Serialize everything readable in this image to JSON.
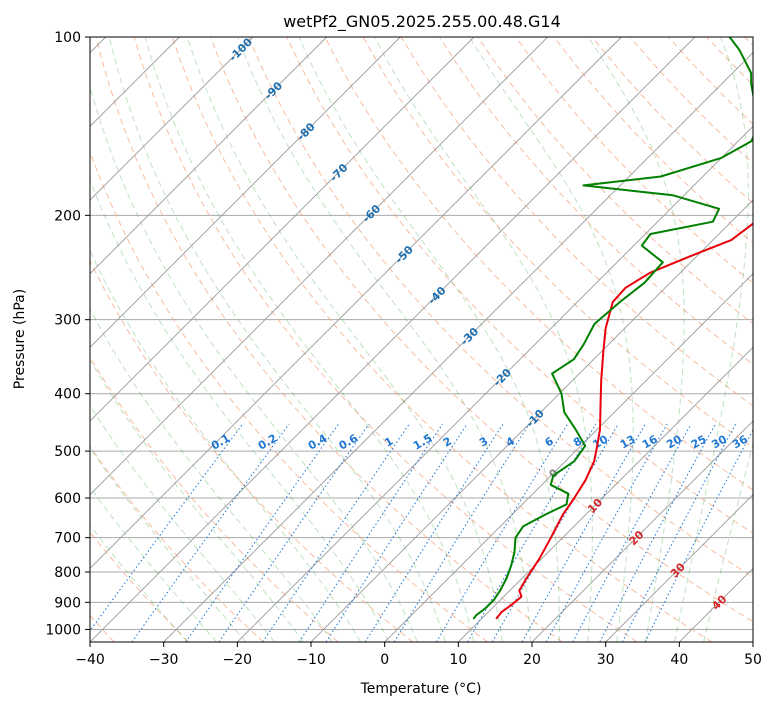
{
  "chart_data": {
    "type": "line",
    "subtype": "skew-t log-p diagram",
    "title": "wetPf2_GN05.2025.255.00.48.G14",
    "xlabel": "Temperature (°C)",
    "ylabel": "Pressure (hPa)",
    "xlim": [
      -40,
      50
    ],
    "ylim": [
      1050,
      100
    ],
    "x_ticks": [
      -40,
      -30,
      -20,
      -10,
      0,
      10,
      20,
      30,
      40,
      50
    ],
    "x_tick_labels": [
      "−40",
      "−30",
      "−20",
      "−10",
      "0",
      "10",
      "20",
      "30",
      "40",
      "50"
    ],
    "y_ticks": [
      1000,
      900,
      800,
      700,
      600,
      500,
      400,
      300,
      200,
      100
    ],
    "y_tick_labels": [
      "1000",
      "900",
      "800",
      "700",
      "600",
      "500",
      "400",
      "300",
      "200",
      "100"
    ],
    "grid": true,
    "colors": {
      "temperature": "#e8000b",
      "dewpoint": "#008000",
      "isotherm": "#999999",
      "isobar": "#aaaaaa",
      "dry_adiabat": "#f4a582",
      "moist_adiabat": "#2ca02c",
      "mixing_ratio": "#1f77d4",
      "isotherm_label_neg": "#1f6fb0",
      "isotherm_label_pos": "#d62728",
      "isotherm_label_zero": "#808080"
    },
    "series": [
      {
        "name": "Temperature",
        "points": [
          [
            960,
            12.0
          ],
          [
            935,
            11.8
          ],
          [
            905,
            12.2
          ],
          [
            880,
            12.4
          ],
          [
            860,
            11.3
          ],
          [
            820,
            10.6
          ],
          [
            760,
            9.7
          ],
          [
            700,
            8.4
          ],
          [
            640,
            6.9
          ],
          [
            600,
            6.2
          ],
          [
            560,
            5.3
          ],
          [
            520,
            3.9
          ],
          [
            500,
            2.8
          ],
          [
            460,
            0.4
          ],
          [
            420,
            -2.7
          ],
          [
            380,
            -6.1
          ],
          [
            340,
            -9.7
          ],
          [
            310,
            -12.6
          ],
          [
            280,
            -15.2
          ],
          [
            265,
            -15.4
          ],
          [
            250,
            -14.1
          ],
          [
            235,
            -11.0
          ],
          [
            220,
            -7.5
          ],
          [
            205,
            -6.7
          ],
          [
            195,
            -6.2
          ],
          [
            180,
            -4.4
          ],
          [
            165,
            -3.3
          ],
          [
            150,
            -3.0
          ],
          [
            135,
            -2.7
          ],
          [
            120,
            -3.4
          ],
          [
            110,
            -3.9
          ],
          [
            100,
            -4.6
          ]
        ]
      },
      {
        "name": "Dewpoint",
        "points": [
          [
            960,
            8.9
          ],
          [
            945,
            8.8
          ],
          [
            920,
            9.1
          ],
          [
            890,
            9.1
          ],
          [
            860,
            8.7
          ],
          [
            820,
            7.9
          ],
          [
            780,
            6.8
          ],
          [
            740,
            5.4
          ],
          [
            700,
            3.6
          ],
          [
            670,
            3.1
          ],
          [
            640,
            4.5
          ],
          [
            615,
            6.0
          ],
          [
            590,
            4.8
          ],
          [
            570,
            1.2
          ],
          [
            550,
            0.3
          ],
          [
            520,
            1.2
          ],
          [
            490,
            0.6
          ],
          [
            460,
            -2.9
          ],
          [
            430,
            -6.8
          ],
          [
            400,
            -9.7
          ],
          [
            370,
            -13.7
          ],
          [
            350,
            -12.7
          ],
          [
            330,
            -13.4
          ],
          [
            305,
            -14.7
          ],
          [
            280,
            -14.2
          ],
          [
            260,
            -13.5
          ],
          [
            240,
            -13.8
          ],
          [
            225,
            -18.9
          ],
          [
            215,
            -19.3
          ],
          [
            205,
            -12.5
          ],
          [
            195,
            -13.4
          ],
          [
            185,
            -21.5
          ],
          [
            178,
            -35.0
          ],
          [
            172,
            -25.7
          ],
          [
            160,
            -20.0
          ],
          [
            150,
            -18.2
          ],
          [
            140,
            -19.5
          ],
          [
            130,
            -22.7
          ],
          [
            120,
            -26.0
          ],
          [
            115,
            -27.5
          ],
          [
            105,
            -32.3
          ],
          [
            100,
            -35.3
          ]
        ]
      }
    ],
    "isotherm_labels": [
      {
        "t": -100,
        "label": "-100"
      },
      {
        "t": -90,
        "label": "-90"
      },
      {
        "t": -80,
        "label": "-80"
      },
      {
        "t": -70,
        "label": "-70"
      },
      {
        "t": -60,
        "label": "-60"
      },
      {
        "t": -50,
        "label": "-50"
      },
      {
        "t": -40,
        "label": "-40"
      },
      {
        "t": -30,
        "label": "-30"
      },
      {
        "t": -20,
        "label": "-20"
      },
      {
        "t": -10,
        "label": "-10"
      },
      {
        "t": 0,
        "label": "0"
      },
      {
        "t": 10,
        "label": "10"
      },
      {
        "t": 20,
        "label": "20"
      },
      {
        "t": 30,
        "label": "30"
      },
      {
        "t": 40,
        "label": "40"
      }
    ],
    "mixing_ratio_lines": [
      {
        "w": 0.1,
        "label": "0.1"
      },
      {
        "w": 0.2,
        "label": "0.2"
      },
      {
        "w": 0.4,
        "label": "0.4"
      },
      {
        "w": 0.6,
        "label": "0.6"
      },
      {
        "w": 1,
        "label": "1"
      },
      {
        "w": 1.5,
        "label": "1.5"
      },
      {
        "w": 2,
        "label": "2"
      },
      {
        "w": 3,
        "label": "3"
      },
      {
        "w": 4,
        "label": "4"
      },
      {
        "w": 6,
        "label": "6"
      },
      {
        "w": 8,
        "label": "8"
      },
      {
        "w": 10,
        "label": "10"
      },
      {
        "w": 13,
        "label": "13"
      },
      {
        "w": 16,
        "label": "16"
      },
      {
        "w": 20,
        "label": "20"
      },
      {
        "w": 25,
        "label": "25"
      },
      {
        "w": 30,
        "label": "30"
      },
      {
        "w": 36,
        "label": "36"
      }
    ]
  }
}
